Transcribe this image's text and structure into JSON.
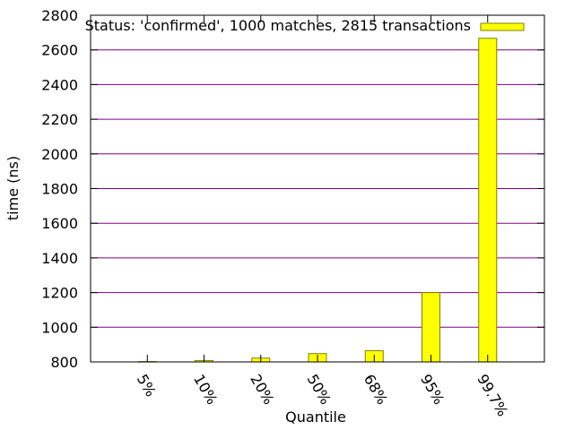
{
  "chart_data": {
    "type": "bar",
    "xlabel": "Quantile",
    "ylabel": "time (ns)",
    "categories": [
      "5%",
      "10%",
      "20%",
      "50%",
      "68%",
      "95%",
      "99.7%"
    ],
    "series": [
      {
        "name": "Status: 'confirmed', 1000 matches, 2815 transactions",
        "values": [
          802,
          808,
          822,
          848,
          865,
          1200,
          2667
        ]
      }
    ],
    "ylim": [
      800,
      2800
    ],
    "yticks": [
      800,
      1000,
      1200,
      1400,
      1600,
      1800,
      2000,
      2200,
      2400,
      2600,
      2800
    ],
    "grid": true,
    "legend_position": "top-right",
    "colors": {
      "bar_fill": "#ffff00",
      "bar_stroke": "#808000",
      "grid": "#800080",
      "axis": "#000000"
    }
  }
}
